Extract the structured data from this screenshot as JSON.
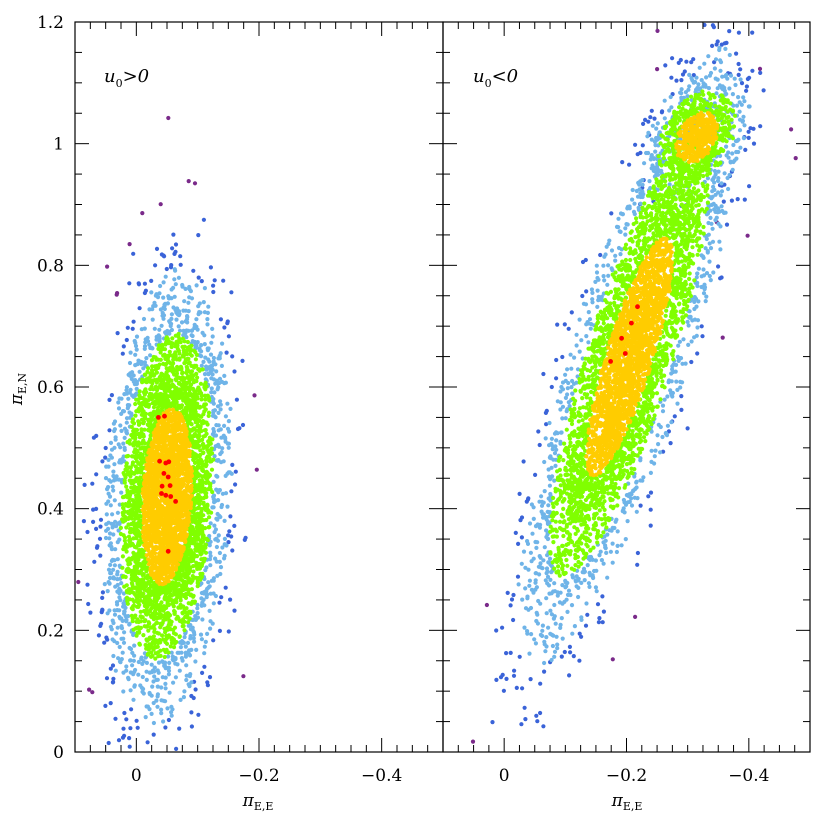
{
  "chart_data": {
    "type": "scatter",
    "ylabel": "π",
    "ylabel_sub": "E,N",
    "ylim": [
      0,
      1.2
    ],
    "yticks": [
      0,
      0.2,
      0.4,
      0.6,
      0.8,
      1,
      1.2
    ],
    "ytick_labels": [
      "0",
      "0.2",
      "0.4",
      "0.6",
      "0.8",
      "1",
      "1.2"
    ],
    "xlim": [
      0.1,
      -0.5
    ],
    "xticks": [
      0,
      -0.2,
      -0.4
    ],
    "xtick_labels": [
      "0",
      "−0.2",
      "−0.4"
    ],
    "xlabel": "π",
    "xlabel_sub": "E,E",
    "colors": {
      "red": "#ff0000",
      "yellow": "#ffcc00",
      "green": "#80ff00",
      "lightblue": "#6fb4e8",
      "blue": "#3a63d8",
      "purple": "#7a2a8a"
    },
    "panels": [
      {
        "label_prefix": "u",
        "label_sub": "0",
        "label_suffix": ">0",
        "clouds": [
          {
            "center": [
              -0.05,
              0.42
            ],
            "slope": -0.062,
            "sigma_along": 0.145,
            "sigma_perp": 0.04
          }
        ],
        "red_points": [
          [
            -0.036,
            0.55
          ],
          [
            -0.046,
            0.552
          ],
          [
            -0.038,
            0.478
          ],
          [
            -0.048,
            0.475
          ],
          [
            -0.053,
            0.477
          ],
          [
            -0.045,
            0.458
          ],
          [
            -0.052,
            0.452
          ],
          [
            -0.042,
            0.437
          ],
          [
            -0.055,
            0.438
          ],
          [
            -0.048,
            0.422
          ],
          [
            -0.056,
            0.42
          ],
          [
            -0.064,
            0.412
          ],
          [
            -0.041,
            0.425
          ],
          [
            -0.052,
            0.33
          ]
        ]
      },
      {
        "label_prefix": "u",
        "label_sub": "0",
        "label_suffix": "<0",
        "clouds": [
          {
            "center": [
              -0.205,
              0.65
            ],
            "slope": -0.31,
            "sigma_along": 0.205,
            "sigma_perp": 0.038
          },
          {
            "center": [
              -0.315,
              1.01
            ],
            "slope": -0.55,
            "sigma_along": 0.045,
            "sigma_perp": 0.03
          }
        ],
        "red_points": [
          [
            -0.208,
            0.705
          ],
          [
            -0.192,
            0.68
          ],
          [
            -0.198,
            0.655
          ],
          [
            -0.174,
            0.642
          ],
          [
            -0.218,
            0.732
          ]
        ]
      }
    ]
  }
}
